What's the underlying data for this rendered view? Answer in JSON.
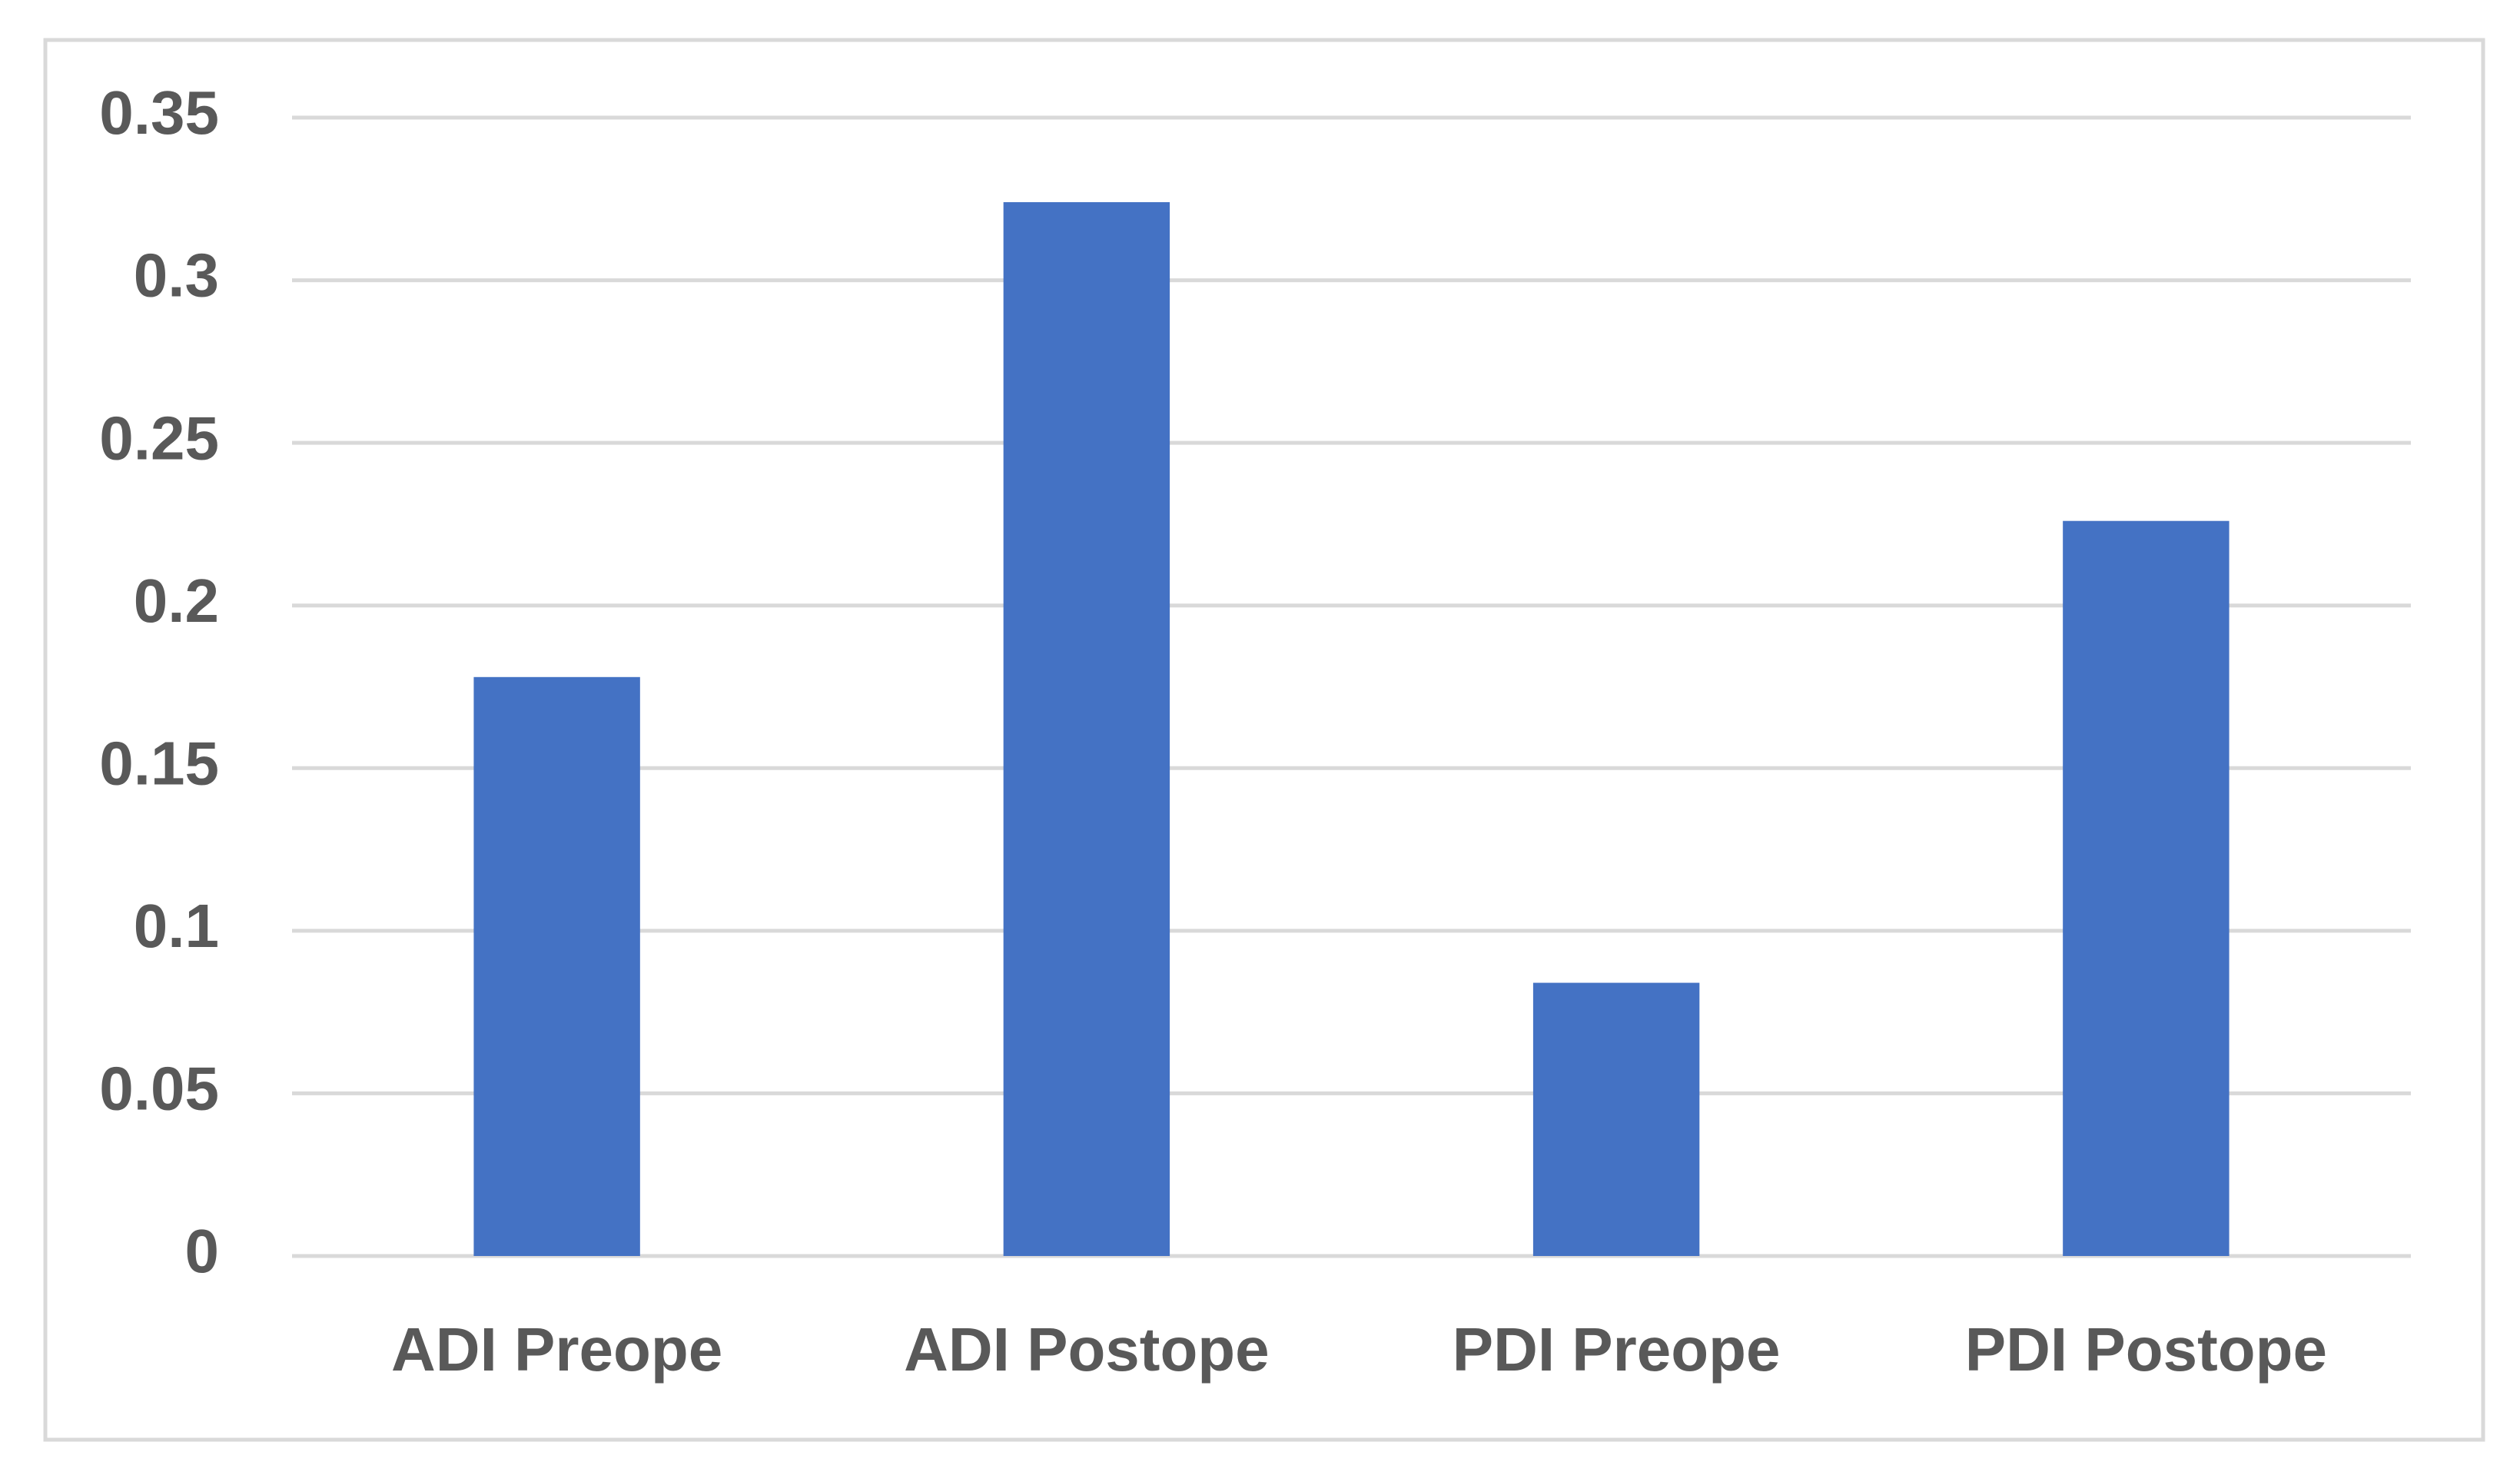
{
  "chart_data": {
    "type": "bar",
    "categories": [
      "ADI Preope",
      "ADI Postope",
      "PDI Preope",
      "PDI Postope"
    ],
    "values": [
      0.178,
      0.324,
      0.084,
      0.226
    ],
    "color": "#4472c4",
    "ylim": [
      0,
      0.35
    ],
    "yticks": [
      0,
      0.05,
      0.1,
      0.15,
      0.2,
      0.25,
      0.3,
      0.35
    ],
    "grid": true
  }
}
